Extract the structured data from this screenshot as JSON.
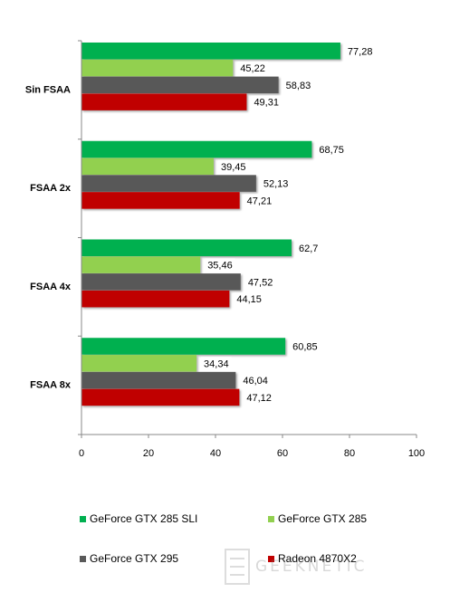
{
  "chart_data": {
    "type": "bar",
    "orientation": "horizontal",
    "categories": [
      "Sin FSAA",
      "FSAA 2x",
      "FSAA 4x",
      "FSAA 8x"
    ],
    "series": [
      {
        "name": "GeForce GTX 285 SLI",
        "color": "#00b050",
        "values": [
          77.28,
          68.75,
          62.7,
          60.85
        ],
        "labels": [
          "77,28",
          "68,75",
          "62,7",
          "60,85"
        ]
      },
      {
        "name": "GeForce GTX 285",
        "color": "#92d050",
        "values": [
          45.22,
          39.45,
          35.46,
          34.34
        ],
        "labels": [
          "45,22",
          "39,45",
          "35,46",
          "34,34"
        ]
      },
      {
        "name": "GeForce GTX 295",
        "color": "#595959",
        "values": [
          58.83,
          52.13,
          47.52,
          46.04
        ],
        "labels": [
          "58,83",
          "52,13",
          "47,52",
          "46,04"
        ]
      },
      {
        "name": "Radeon 4870X2",
        "color": "#c00000",
        "values": [
          49.31,
          47.21,
          44.15,
          47.12
        ],
        "labels": [
          "49,31",
          "47,21",
          "44,15",
          "47,12"
        ]
      }
    ],
    "xlim": [
      0,
      100
    ],
    "xticks": [
      "0",
      "20",
      "40",
      "60",
      "80",
      "100"
    ],
    "grid": false,
    "legend_position": "bottom",
    "title": "",
    "xlabel": "",
    "ylabel": ""
  },
  "watermark": {
    "text": "GEEKNETIC",
    "icon": "geeknetic-logo-icon"
  }
}
